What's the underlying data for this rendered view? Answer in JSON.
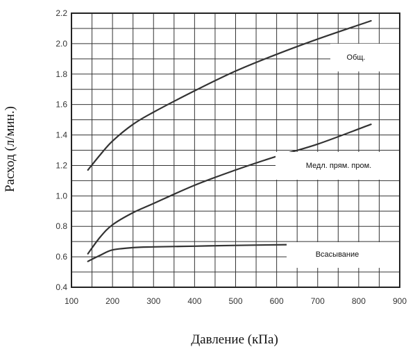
{
  "chart_data": {
    "type": "line",
    "xlabel": "Давление (кПа)",
    "ylabel": "Расход (л/мин.)",
    "xlim": [
      100,
      900
    ],
    "ylim": [
      0.4,
      2.2
    ],
    "x_ticks": [
      100,
      200,
      300,
      400,
      500,
      600,
      700,
      800,
      900
    ],
    "y_ticks": [
      0.4,
      0.6,
      0.8,
      1.0,
      1.2,
      1.4,
      1.6,
      1.8,
      2.0,
      2.2
    ],
    "x_tick_labels": [
      "100",
      "200",
      "300",
      "400",
      "500",
      "600",
      "700",
      "800",
      "900"
    ],
    "y_tick_labels": [
      "0.4",
      "0.6",
      "0.8",
      "1.0",
      "1.2",
      "1.4",
      "1.6",
      "1.8",
      "2.0",
      "2.2"
    ],
    "grid": true,
    "line_color": "#333333",
    "series": [
      {
        "name": "Общ.",
        "x": [
          140,
          170,
          200,
          250,
          300,
          400,
          500,
          600,
          700,
          830
        ],
        "y": [
          1.17,
          1.27,
          1.36,
          1.47,
          1.55,
          1.69,
          1.82,
          1.93,
          2.03,
          2.15
        ]
      },
      {
        "name": "Медл. прям. пром.",
        "x": [
          140,
          170,
          200,
          250,
          300,
          400,
          500,
          600,
          700,
          830
        ],
        "y": [
          0.62,
          0.73,
          0.81,
          0.89,
          0.95,
          1.07,
          1.17,
          1.26,
          1.34,
          1.47
        ]
      },
      {
        "name": "Всасывание",
        "x": [
          140,
          170,
          200,
          250,
          300,
          400,
          500,
          630
        ],
        "y": [
          0.57,
          0.61,
          0.645,
          0.66,
          0.665,
          0.67,
          0.675,
          0.68
        ]
      }
    ]
  }
}
